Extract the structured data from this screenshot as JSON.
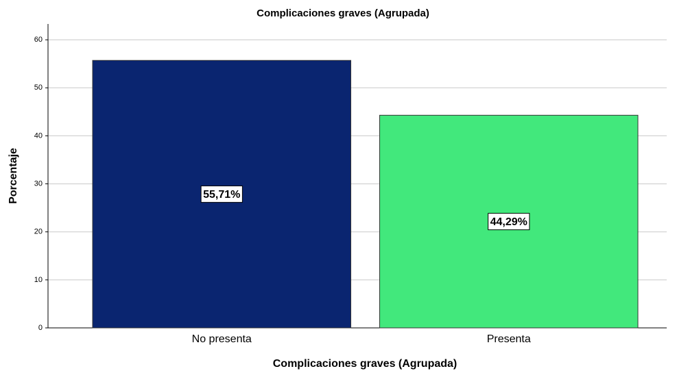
{
  "chart_data": {
    "type": "bar",
    "title": "Complicaciones graves (Agrupada)",
    "x_label": "Complicaciones graves (Agrupada)",
    "y_label": "Porcentaje",
    "categories": [
      "No presenta",
      "Presenta"
    ],
    "values": [
      55.71,
      44.29
    ],
    "value_labels": [
      "55,71%",
      "44,29%"
    ],
    "colors": [
      "#0a2570",
      "#42e87c"
    ],
    "ylim": [
      0,
      63.3
    ],
    "yticks": [
      0,
      10,
      20,
      30,
      40,
      50,
      60
    ],
    "grid": true
  }
}
